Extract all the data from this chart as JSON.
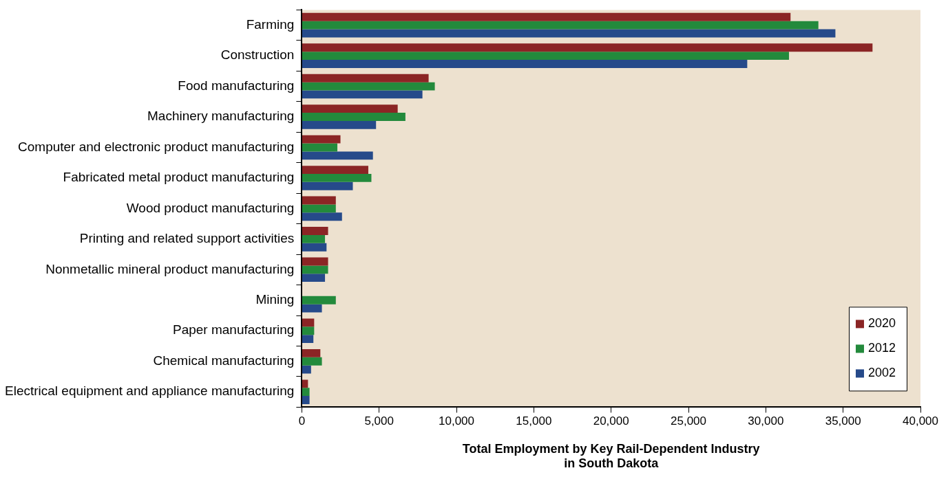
{
  "chart_data": {
    "type": "bar",
    "orientation": "horizontal",
    "xlabel": "Total Employment by Key Rail-Dependent Industry\nin South Dakota",
    "categories": [
      "Farming",
      "Construction",
      "Food manufacturing",
      "Machinery manufacturing",
      "Computer and electronic product manufacturing",
      "Fabricated metal product manufacturing",
      "Wood product manufacturing",
      "Printing and related support activities",
      "Nonmetallic mineral product manufacturing",
      "Mining",
      "Paper manufacturing",
      "Chemical manufacturing",
      "Electrical equipment and appliance manufacturing"
    ],
    "series": [
      {
        "name": "2020",
        "color": "#8b2525",
        "values": [
          31600,
          36900,
          8200,
          6200,
          2500,
          4300,
          2200,
          1700,
          1700,
          null,
          800,
          1200,
          400
        ]
      },
      {
        "name": "2012",
        "color": "#238a3c",
        "values": [
          33400,
          31500,
          8600,
          6700,
          2300,
          4500,
          2200,
          1500,
          1700,
          2200,
          800,
          1300,
          500
        ]
      },
      {
        "name": "2002",
        "color": "#264a8a",
        "values": [
          34500,
          28800,
          7800,
          4800,
          4600,
          3300,
          2600,
          1600,
          1500,
          1300,
          750,
          600,
          500
        ]
      }
    ],
    "xlim": [
      0,
      40000
    ],
    "xticks": [
      {
        "value": 0,
        "label": "0"
      },
      {
        "value": 5000,
        "label": "5,000"
      },
      {
        "value": 10000,
        "label": "10,000"
      },
      {
        "value": 15000,
        "label": "15,000"
      },
      {
        "value": 20000,
        "label": "20,000"
      },
      {
        "value": 25000,
        "label": "25,000"
      },
      {
        "value": 30000,
        "label": "30,000"
      },
      {
        "value": 35000,
        "label": "35,000"
      },
      {
        "value": 40000,
        "label": "40,000"
      }
    ],
    "grid": false,
    "legend": "bottom right"
  }
}
